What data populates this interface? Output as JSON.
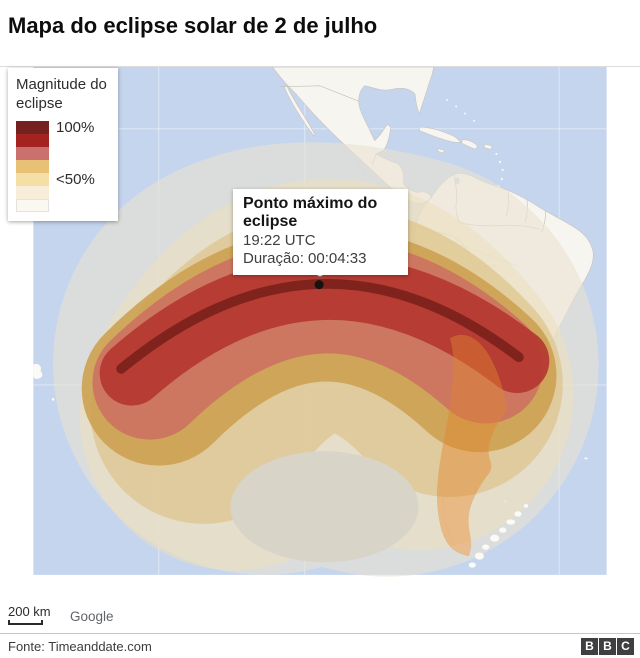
{
  "header": {
    "title": "Mapa do eclipse solar de 2 de julho"
  },
  "legend": {
    "title": "Magnitude do eclipse",
    "items": [
      {
        "color": "#74211f",
        "label": "100%"
      },
      {
        "color": "#a42220",
        "label": ""
      },
      {
        "color": "#cb716d",
        "label": ""
      },
      {
        "color": "#e8c177",
        "label": ""
      },
      {
        "color": "#f6dfa7",
        "label": "<50%"
      },
      {
        "color": "#f8edd8",
        "label": ""
      },
      {
        "color": "#fbf8f1",
        "label": ""
      }
    ]
  },
  "callout": {
    "title": "Ponto máximo do eclipse",
    "time": "19:22 UTC",
    "duration": "Duração: 00:04:33"
  },
  "map": {
    "scale_label": "200 km",
    "attribution": "Google",
    "ocean_color": "#c5d5ee",
    "land_color": "#f7f5f0",
    "totality_line_color": "#7c221b",
    "max_eclipse_band_color": "#b43731"
  },
  "footer": {
    "source": "Fonte: Timeanddate.com",
    "logo_letters": [
      "B",
      "B",
      "C"
    ]
  }
}
